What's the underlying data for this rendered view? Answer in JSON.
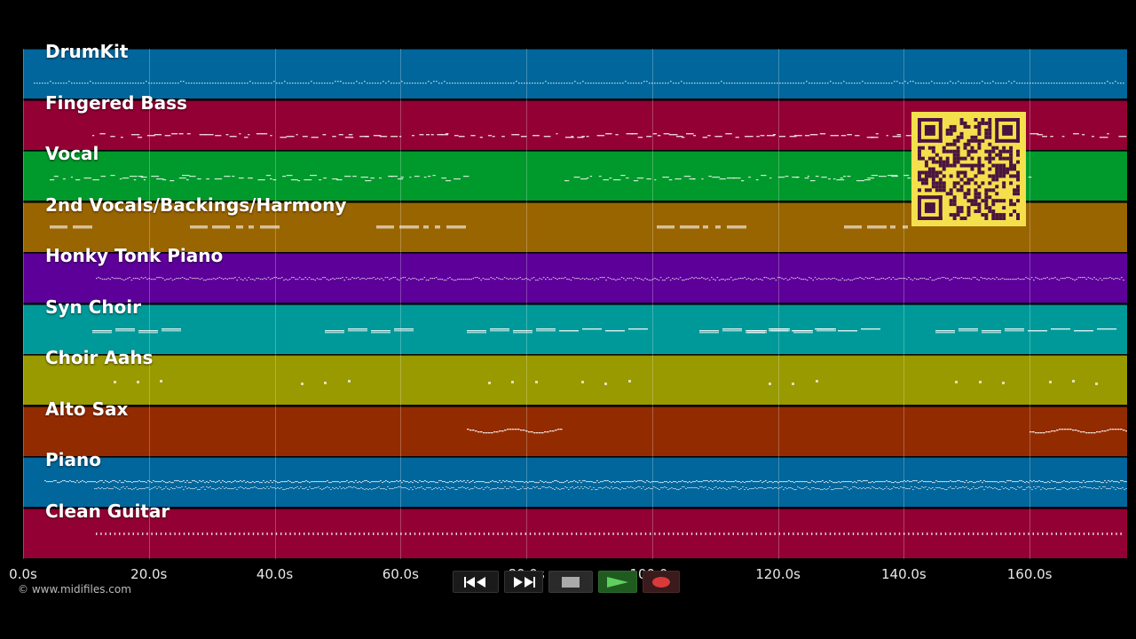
{
  "tracks": [
    {
      "name": "DrumKit",
      "color": "#00669c",
      "pattern": "dots"
    },
    {
      "name": "Fingered Bass",
      "color": "#930033",
      "pattern": "bass"
    },
    {
      "name": "Vocal",
      "color": "#00992b",
      "pattern": "vocal"
    },
    {
      "name": "2nd Vocals/Backings/Harmony",
      "color": "#996500",
      "pattern": "blocks"
    },
    {
      "name": "Honky Tonk Piano",
      "color": "#5d0099",
      "pattern": "dense"
    },
    {
      "name": "Syn Choir",
      "color": "#009999",
      "pattern": "choir"
    },
    {
      "name": "Choir Aahs",
      "color": "#999900",
      "pattern": "aahs"
    },
    {
      "name": "Alto Sax",
      "color": "#932b00",
      "pattern": "sax"
    },
    {
      "name": "Piano",
      "color": "#00669c",
      "pattern": "piano"
    },
    {
      "name": "Clean Guitar",
      "color": "#930033",
      "pattern": "guitar"
    }
  ],
  "timeline": {
    "ticks": [
      "0.0s",
      "20.0s",
      "40.0s",
      "60.0s",
      "80.0s",
      "100.0s",
      "120.0s",
      "140.0s",
      "160.0s"
    ],
    "duration_seconds": 175.5
  },
  "copyright": "© www.midifiles.com",
  "transport": {
    "rewind_icon": "rewind-icon",
    "forward_icon": "fast-forward-icon",
    "stop_icon": "stop-icon",
    "play_icon": "play-icon",
    "record_icon": "record-icon",
    "play_color": "#2a8a2a",
    "record_color": "#c83030"
  },
  "qr_code": {
    "icon": "qr-code",
    "color": "#f4e04d"
  }
}
